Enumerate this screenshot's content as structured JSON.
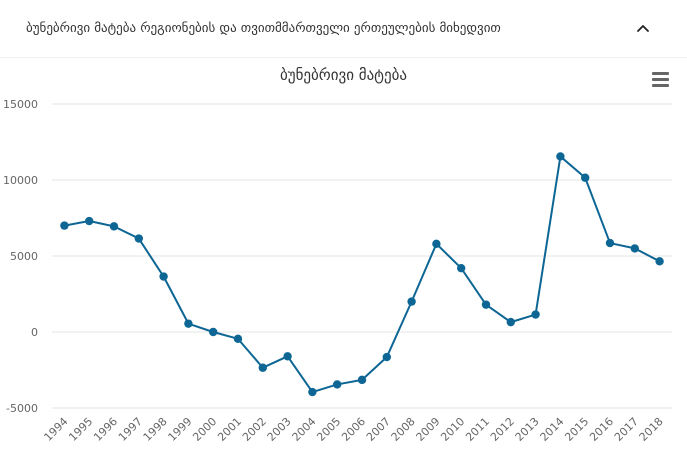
{
  "panel": {
    "title": "ბუნებრივი მატება რეგიონების და თვითმმართველი ერთეულების მიხედვით",
    "collapse_icon": "chevron-up-icon"
  },
  "menu_icon": "hamburger-menu-icon",
  "colors": {
    "series": "#0d6694",
    "grid": "#e6e6e6",
    "text": "#333333"
  },
  "chart_data": {
    "type": "line",
    "title": "ბუნებრივი მატება",
    "xlabel": "",
    "ylabel": "",
    "ylim": [
      -5000,
      15000
    ],
    "y_ticks": [
      -5000,
      0,
      5000,
      10000,
      15000
    ],
    "grid": true,
    "x_label_rotation": "-45deg",
    "categories": [
      "1994",
      "1995",
      "1996",
      "1997",
      "1998",
      "1999",
      "2000",
      "2001",
      "2002",
      "2003",
      "2004",
      "2005",
      "2006",
      "2007",
      "2008",
      "2009",
      "2010",
      "2011",
      "2012",
      "2013",
      "2014",
      "2015",
      "2016",
      "2017",
      "2018"
    ],
    "series": [
      {
        "values": [
          7000,
          7300,
          6950,
          6150,
          3650,
          550,
          0,
          -450,
          -2350,
          -1600,
          -3950,
          -3450,
          -3150,
          -1650,
          2000,
          5800,
          4200,
          1800,
          650,
          1150,
          11550,
          10150,
          5850,
          5500,
          4650
        ]
      }
    ]
  }
}
